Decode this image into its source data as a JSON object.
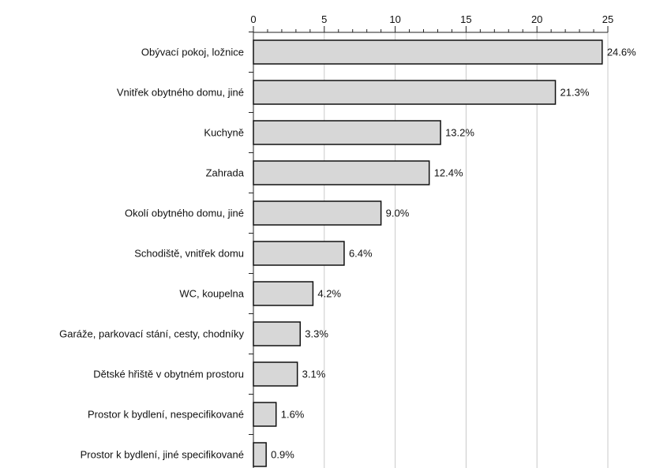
{
  "chart_data": {
    "type": "bar",
    "orientation": "horizontal",
    "categories": [
      "Obývací pokoj, ložnice",
      "Vnitřek obytného domu, jiné",
      "Kuchyně",
      "Zahrada",
      "Okolí obytného domu, jiné",
      "Schodiště, vnitřek domu",
      "WC, koupelna",
      "Garáže, parkovací stání, cesty, chodníky",
      "Dětské hřiště v obytném prostoru",
      "Prostor k bydlení, nespecifikované",
      "Prostor k bydlení, jiné specifikované"
    ],
    "values": [
      24.6,
      21.3,
      13.2,
      12.4,
      9.0,
      6.4,
      4.2,
      3.3,
      3.1,
      1.6,
      0.9
    ],
    "data_labels": [
      "24.6%",
      "21.3%",
      "13.2%",
      "12.4%",
      "9.0%",
      "6.4%",
      "4.2%",
      "3.3%",
      "3.1%",
      "1.6%",
      "0.9%"
    ],
    "x_ticks": [
      0,
      5,
      10,
      15,
      20,
      25
    ],
    "xlim": [
      0,
      25
    ],
    "grid": "vertical",
    "title": "",
    "xlabel": "",
    "ylabel": "",
    "colors": {
      "bar_fill": "#d7d7d7",
      "bar_stroke": "#111111",
      "grid": "#c9c9c9"
    }
  }
}
